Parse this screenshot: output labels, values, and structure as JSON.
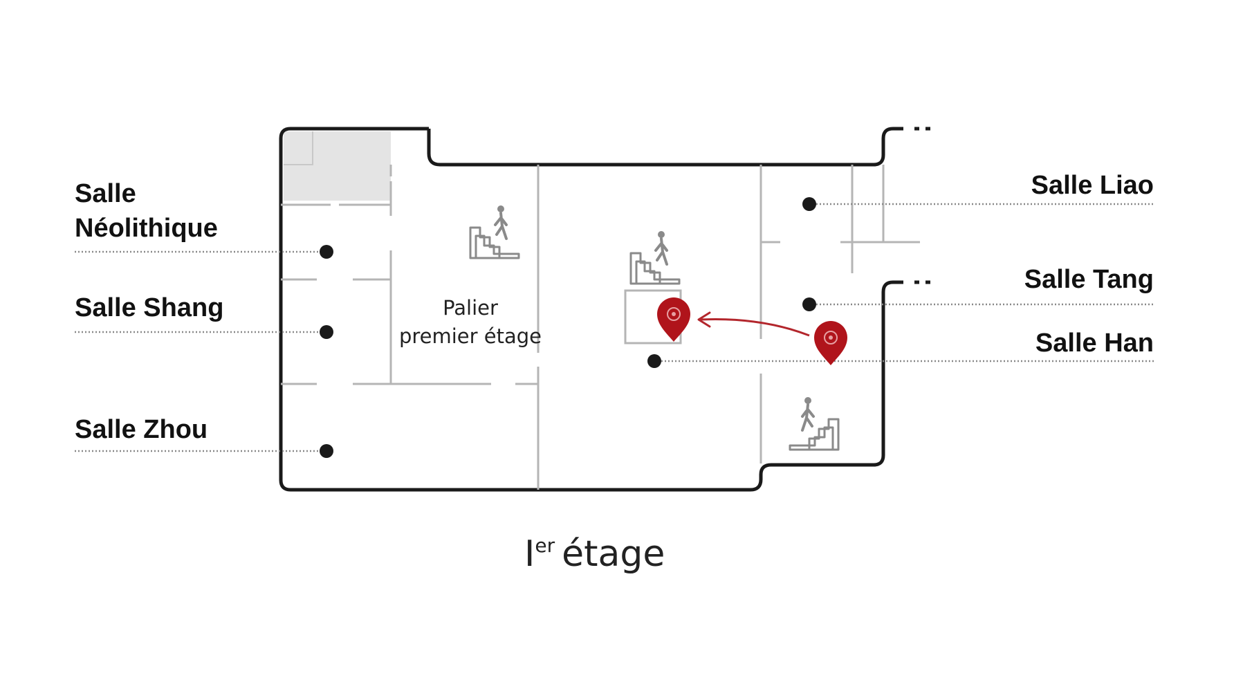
{
  "rooms": {
    "neolithique": {
      "line1": "Salle",
      "line2": "Néolithique"
    },
    "shang": {
      "label": "Salle Shang"
    },
    "zhou": {
      "label": "Salle Zhou"
    },
    "liao": {
      "label": "Salle Liao"
    },
    "tang": {
      "label": "Salle Tang"
    },
    "han": {
      "label": "Salle Han"
    }
  },
  "landing": {
    "line1": "Palier",
    "line2": "premier étage"
  },
  "floor": {
    "number": "I",
    "ordinal_suffix": "er",
    "word": "étage"
  },
  "icons": {
    "stairs": "stairs-person-icon",
    "marker": "location-pin-icon"
  },
  "colors": {
    "wall": "#1a1a1a",
    "partition": "#b5b5b5",
    "leader": "#888888",
    "dot": "#1a1a1a",
    "marker": "#b0141b",
    "arrow": "#b3262c",
    "shaded_area": "#e4e4e4"
  }
}
